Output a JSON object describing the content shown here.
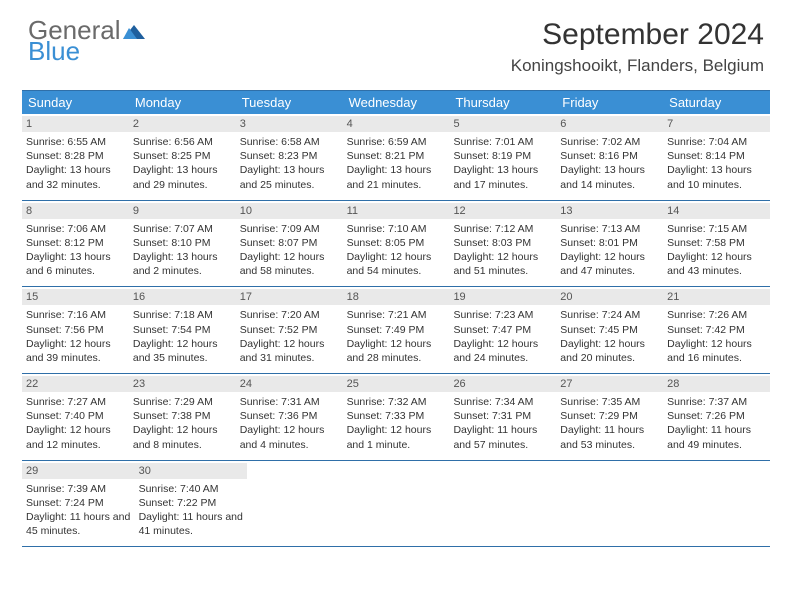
{
  "logo": {
    "word1": "General",
    "word2": "Blue"
  },
  "title": "September 2024",
  "location": "Koningshooikt, Flanders, Belgium",
  "colors": {
    "header_bg": "#3a8fd4",
    "header_text": "#ffffff",
    "daynum_bg": "#e9e9e9",
    "border": "#2f6fa8",
    "logo_gray": "#6a6a6a",
    "logo_blue": "#3a8fd4"
  },
  "day_headers": [
    "Sunday",
    "Monday",
    "Tuesday",
    "Wednesday",
    "Thursday",
    "Friday",
    "Saturday"
  ],
  "weeks": [
    [
      {
        "n": "1",
        "sr": "6:55 AM",
        "ss": "8:28 PM",
        "dl": "13 hours and 32 minutes."
      },
      {
        "n": "2",
        "sr": "6:56 AM",
        "ss": "8:25 PM",
        "dl": "13 hours and 29 minutes."
      },
      {
        "n": "3",
        "sr": "6:58 AM",
        "ss": "8:23 PM",
        "dl": "13 hours and 25 minutes."
      },
      {
        "n": "4",
        "sr": "6:59 AM",
        "ss": "8:21 PM",
        "dl": "13 hours and 21 minutes."
      },
      {
        "n": "5",
        "sr": "7:01 AM",
        "ss": "8:19 PM",
        "dl": "13 hours and 17 minutes."
      },
      {
        "n": "6",
        "sr": "7:02 AM",
        "ss": "8:16 PM",
        "dl": "13 hours and 14 minutes."
      },
      {
        "n": "7",
        "sr": "7:04 AM",
        "ss": "8:14 PM",
        "dl": "13 hours and 10 minutes."
      }
    ],
    [
      {
        "n": "8",
        "sr": "7:06 AM",
        "ss": "8:12 PM",
        "dl": "13 hours and 6 minutes."
      },
      {
        "n": "9",
        "sr": "7:07 AM",
        "ss": "8:10 PM",
        "dl": "13 hours and 2 minutes."
      },
      {
        "n": "10",
        "sr": "7:09 AM",
        "ss": "8:07 PM",
        "dl": "12 hours and 58 minutes."
      },
      {
        "n": "11",
        "sr": "7:10 AM",
        "ss": "8:05 PM",
        "dl": "12 hours and 54 minutes."
      },
      {
        "n": "12",
        "sr": "7:12 AM",
        "ss": "8:03 PM",
        "dl": "12 hours and 51 minutes."
      },
      {
        "n": "13",
        "sr": "7:13 AM",
        "ss": "8:01 PM",
        "dl": "12 hours and 47 minutes."
      },
      {
        "n": "14",
        "sr": "7:15 AM",
        "ss": "7:58 PM",
        "dl": "12 hours and 43 minutes."
      }
    ],
    [
      {
        "n": "15",
        "sr": "7:16 AM",
        "ss": "7:56 PM",
        "dl": "12 hours and 39 minutes."
      },
      {
        "n": "16",
        "sr": "7:18 AM",
        "ss": "7:54 PM",
        "dl": "12 hours and 35 minutes."
      },
      {
        "n": "17",
        "sr": "7:20 AM",
        "ss": "7:52 PM",
        "dl": "12 hours and 31 minutes."
      },
      {
        "n": "18",
        "sr": "7:21 AM",
        "ss": "7:49 PM",
        "dl": "12 hours and 28 minutes."
      },
      {
        "n": "19",
        "sr": "7:23 AM",
        "ss": "7:47 PM",
        "dl": "12 hours and 24 minutes."
      },
      {
        "n": "20",
        "sr": "7:24 AM",
        "ss": "7:45 PM",
        "dl": "12 hours and 20 minutes."
      },
      {
        "n": "21",
        "sr": "7:26 AM",
        "ss": "7:42 PM",
        "dl": "12 hours and 16 minutes."
      }
    ],
    [
      {
        "n": "22",
        "sr": "7:27 AM",
        "ss": "7:40 PM",
        "dl": "12 hours and 12 minutes."
      },
      {
        "n": "23",
        "sr": "7:29 AM",
        "ss": "7:38 PM",
        "dl": "12 hours and 8 minutes."
      },
      {
        "n": "24",
        "sr": "7:31 AM",
        "ss": "7:36 PM",
        "dl": "12 hours and 4 minutes."
      },
      {
        "n": "25",
        "sr": "7:32 AM",
        "ss": "7:33 PM",
        "dl": "12 hours and 1 minute."
      },
      {
        "n": "26",
        "sr": "7:34 AM",
        "ss": "7:31 PM",
        "dl": "11 hours and 57 minutes."
      },
      {
        "n": "27",
        "sr": "7:35 AM",
        "ss": "7:29 PM",
        "dl": "11 hours and 53 minutes."
      },
      {
        "n": "28",
        "sr": "7:37 AM",
        "ss": "7:26 PM",
        "dl": "11 hours and 49 minutes."
      }
    ],
    [
      {
        "n": "29",
        "sr": "7:39 AM",
        "ss": "7:24 PM",
        "dl": "11 hours and 45 minutes."
      },
      {
        "n": "30",
        "sr": "7:40 AM",
        "ss": "7:22 PM",
        "dl": "11 hours and 41 minutes."
      },
      null,
      null,
      null,
      null,
      null
    ]
  ],
  "labels": {
    "sunrise": "Sunrise: ",
    "sunset": "Sunset: ",
    "daylight": "Daylight: "
  }
}
